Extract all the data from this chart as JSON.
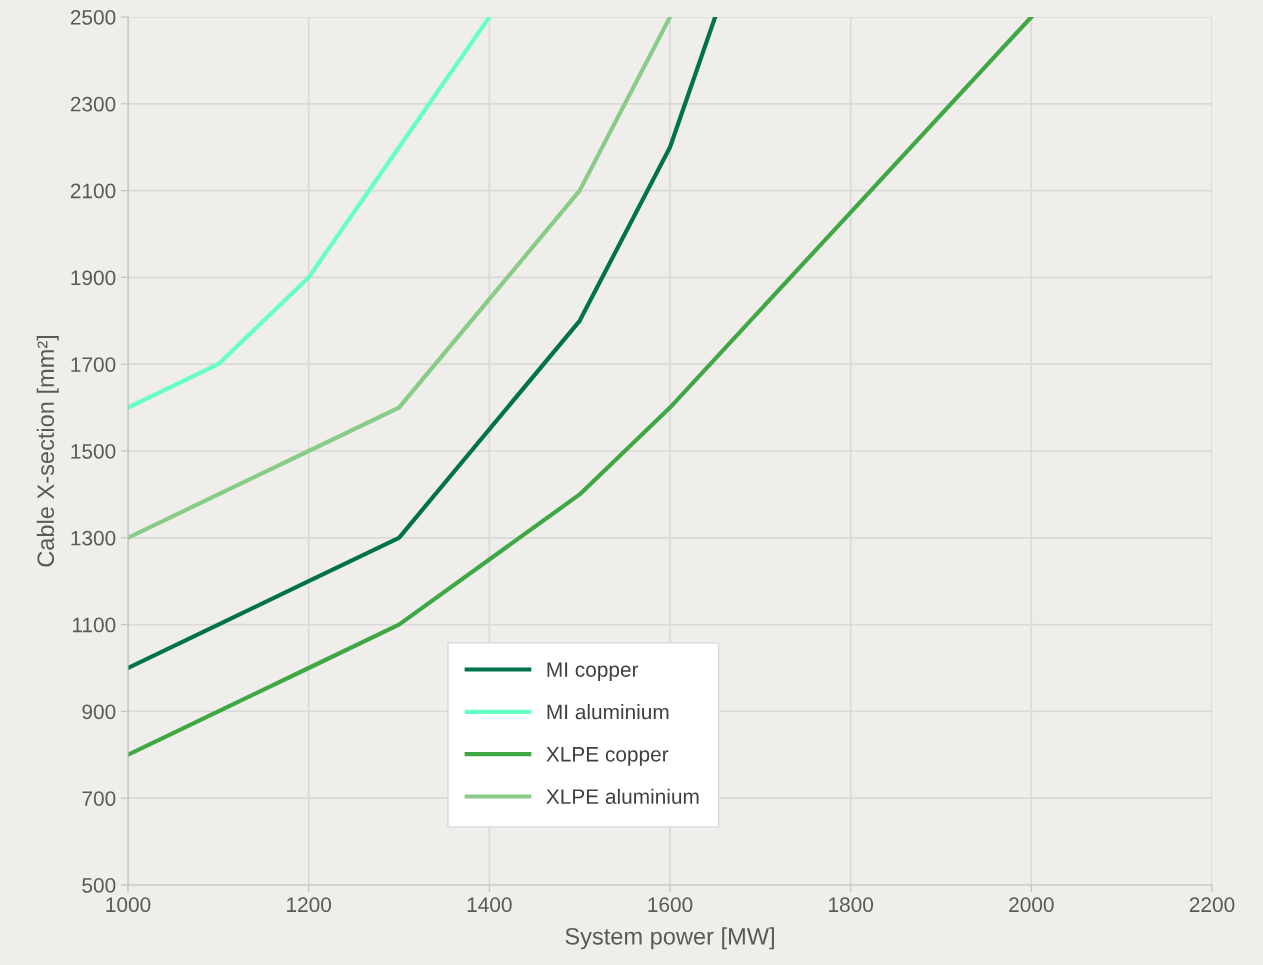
{
  "chart_data": {
    "type": "line",
    "xlabel": "System power [MW]",
    "ylabel": "Cable X-section [mm²]",
    "xlim": [
      1000,
      2200
    ],
    "xticks": [
      1000,
      1200,
      1400,
      1600,
      1800,
      2000,
      2200
    ],
    "ylim": [
      500,
      2500
    ],
    "yticks": [
      500,
      700,
      900,
      1100,
      1300,
      1500,
      1700,
      1900,
      2100,
      2300,
      2500
    ],
    "grid": true,
    "legend": "bottom",
    "marker": "none",
    "line_style": "solid",
    "series": [
      {
        "name": "MI copper",
        "color": "#00734a",
        "x": [
          1000,
          1100,
          1200,
          1300,
          1500,
          1600,
          1650
        ],
        "values": [
          1000,
          1100,
          1200,
          1300,
          1800,
          2200,
          2500
        ]
      },
      {
        "name": "MI aluminium",
        "color": "#66ffc4",
        "x": [
          1000,
          1100,
          1200,
          1300,
          1400
        ],
        "values": [
          1600,
          1700,
          1900,
          2200,
          2500
        ]
      },
      {
        "name": "XLPE copper",
        "color": "#3fa845",
        "x": [
          1000,
          1100,
          1200,
          1300,
          1400,
          1500,
          1600,
          1800,
          2000
        ],
        "values": [
          800,
          900,
          1000,
          1100,
          1250,
          1400,
          1600,
          2050,
          2500
        ]
      },
      {
        "name": "XLPE aluminium",
        "color": "#88cc88",
        "x": [
          1000,
          1100,
          1200,
          1300,
          1400,
          1500,
          1600
        ],
        "values": [
          1300,
          1400,
          1500,
          1600,
          1850,
          2100,
          2500
        ]
      }
    ]
  }
}
